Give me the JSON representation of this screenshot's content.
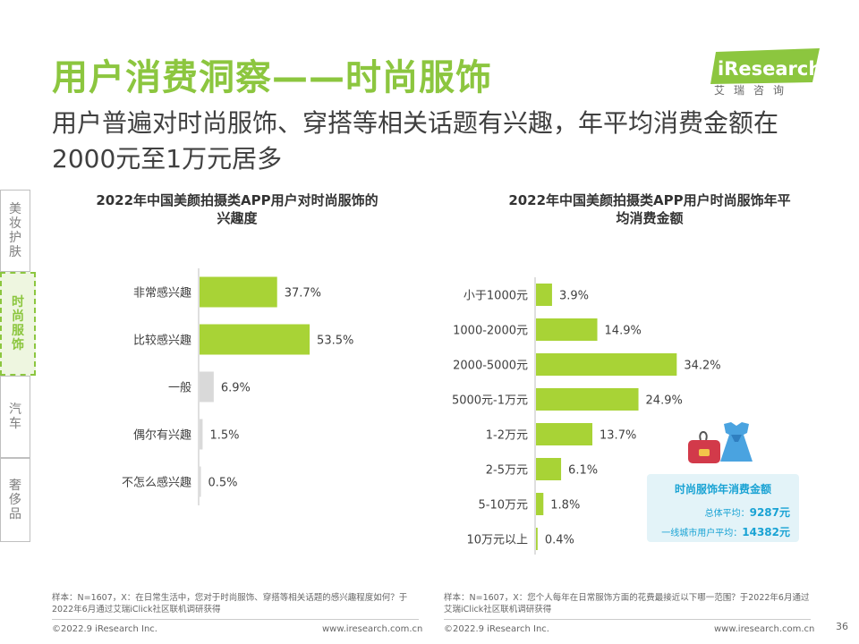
{
  "header": {
    "title": "用户消费洞察——时尚服饰",
    "subtitle": "用户普遍对时尚服饰、穿搭等相关话题有兴趣，年平均消费金额在2000元至1万元居多"
  },
  "logo": {
    "text": "iResearch",
    "cn": "艾瑞咨询"
  },
  "sidebar": {
    "tabs": [
      {
        "label": "美妆护肤",
        "active": false
      },
      {
        "label": "时尚服饰",
        "active": true
      },
      {
        "label": "汽车",
        "active": false
      },
      {
        "label": "奢侈品",
        "active": false
      }
    ]
  },
  "colors": {
    "accent": "#8cc63f",
    "bar_green": "#a8d336",
    "bar_gray": "#d9d9d9",
    "info_blue": "#1aa3d4"
  },
  "chart_data": [
    {
      "type": "bar",
      "orientation": "horizontal",
      "title": "2022年中国美颜拍摄类APP用户对时尚服饰的兴趣度",
      "categories": [
        "非常感兴趣",
        "比较感兴趣",
        "一般",
        "偶尔有兴趣",
        "不怎么感兴趣"
      ],
      "values": [
        37.7,
        53.5,
        6.9,
        1.5,
        0.5
      ],
      "labels": [
        "37.7%",
        "53.5%",
        "6.9%",
        "1.5%",
        "0.5%"
      ],
      "unit": "%",
      "xlim": [
        0,
        60
      ]
    },
    {
      "type": "bar",
      "orientation": "horizontal",
      "title": "2022年中国美颜拍摄类APP用户时尚服饰年平均消费金额",
      "categories": [
        "小于1000元",
        "1000-2000元",
        "2000-5000元",
        "5000元-1万元",
        "1-2万元",
        "2-5万元",
        "5-10万元",
        "10万元以上"
      ],
      "values": [
        3.9,
        14.9,
        34.2,
        24.9,
        13.7,
        6.1,
        1.8,
        0.4
      ],
      "labels": [
        "3.9%",
        "14.9%",
        "34.2%",
        "24.9%",
        "13.7%",
        "6.1%",
        "1.8%",
        "0.4%"
      ],
      "unit": "%",
      "xlim": [
        0,
        40
      ]
    }
  ],
  "infobox": {
    "title": "时尚服饰年消费金额",
    "avg_label": "总体平均：",
    "avg_value": "9287元",
    "tier1_label": "一线城市用户平均：",
    "tier1_value": "14382元"
  },
  "footer": {
    "note_left": "样本：N=1607，X：在日常生活中，您对于时尚服饰、穿搭等相关话题的感兴趣程度如何？于2022年6月通过艾瑞iClick社区联机调研获得",
    "note_right": "样本：N=1607，X：您个人每年在日常服饰方面的花费最接近以下哪一范围？于2022年6月通过艾瑞iClick社区联机调研获得",
    "copyright": "©2022.9 iResearch Inc.",
    "website": "www.iresearch.com.cn",
    "page": "36"
  }
}
